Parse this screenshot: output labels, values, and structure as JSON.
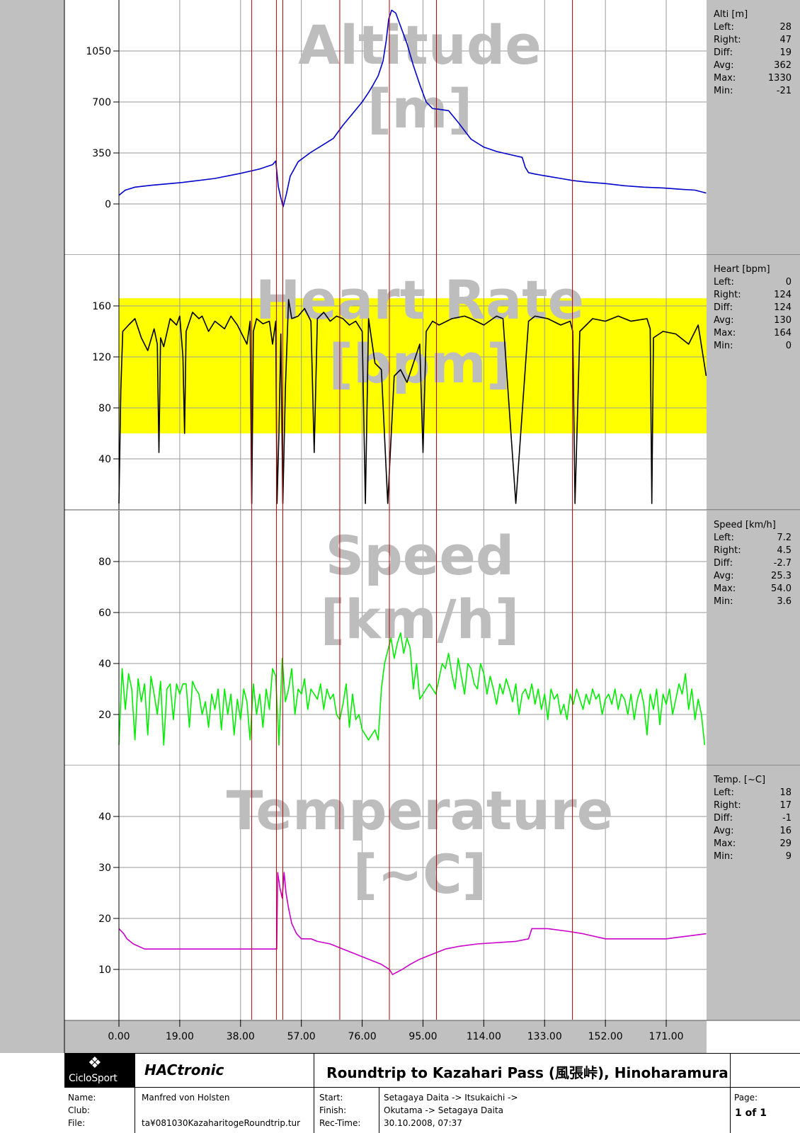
{
  "x_axis": {
    "ticks": [
      "0.00",
      "19.00",
      "38.00",
      "57.00",
      "76.00",
      "95.00",
      "114.00",
      "133.00",
      "152.00",
      "171.00"
    ]
  },
  "markers_x": [
    41.5,
    49.2,
    51.2,
    69.0,
    84.5,
    99.2,
    141.7
  ],
  "panels": [
    {
      "watermark": [
        "Altitude",
        "[m]"
      ],
      "stats_title": "Alti [m]",
      "stats": [
        {
          "label": "Left:",
          "value": "28"
        },
        {
          "label": "Right:",
          "value": "47"
        },
        {
          "label": "Diff:",
          "value": "19"
        },
        {
          "label": "Avg:",
          "value": "362"
        },
        {
          "label": "Max:",
          "value": "1330"
        },
        {
          "label": "Min:",
          "value": "-21"
        }
      ],
      "y_ticks": [
        "0",
        "350",
        "700",
        "1050"
      ]
    },
    {
      "watermark": [
        "Heart Rate",
        "[bpm]"
      ],
      "stats_title": "Heart [bpm]",
      "stats": [
        {
          "label": "Left:",
          "value": "0"
        },
        {
          "label": "Right:",
          "value": "124"
        },
        {
          "label": "Diff:",
          "value": "124"
        },
        {
          "label": "Avg:",
          "value": "130"
        },
        {
          "label": "Max:",
          "value": "164"
        },
        {
          "label": "Min:",
          "value": "0"
        }
      ],
      "y_ticks": [
        "40",
        "80",
        "120",
        "160"
      ]
    },
    {
      "watermark": [
        "Speed",
        "[km/h]"
      ],
      "stats_title": "Speed [km/h]",
      "stats": [
        {
          "label": "Left:",
          "value": "7.2"
        },
        {
          "label": "Right:",
          "value": "4.5"
        },
        {
          "label": "Diff:",
          "value": "-2.7"
        },
        {
          "label": "Avg:",
          "value": "25.3"
        },
        {
          "label": "Max:",
          "value": "54.0"
        },
        {
          "label": "Min:",
          "value": "3.6"
        }
      ],
      "y_ticks": [
        "20",
        "40",
        "60",
        "80"
      ]
    },
    {
      "watermark": [
        "Temperature",
        "[~C]"
      ],
      "stats_title": "Temp. [~C]",
      "stats": [
        {
          "label": "Left:",
          "value": "18"
        },
        {
          "label": "Right:",
          "value": "17"
        },
        {
          "label": "Diff:",
          "value": "-1"
        },
        {
          "label": "Avg:",
          "value": "16"
        },
        {
          "label": "Max:",
          "value": "29"
        },
        {
          "label": "Min:",
          "value": "9"
        }
      ],
      "y_ticks": [
        "10",
        "20",
        "30",
        "40"
      ]
    }
  ],
  "chart_data": [
    {
      "type": "line",
      "ylabel": "Alti [m]",
      "xlim": [
        0,
        183.6
      ],
      "ylim": [
        -350,
        1400
      ],
      "color": "#0000cc",
      "series": [
        {
          "x": [
            0,
            2,
            5,
            10,
            20,
            30,
            38,
            44,
            46,
            48,
            49,
            49.8,
            50.5,
            51.3,
            52.3,
            53.5,
            56,
            60,
            63,
            67,
            70,
            73,
            76,
            78,
            79.5,
            81,
            82.5,
            83.5,
            84.3,
            85.2,
            86.5,
            88,
            90,
            92,
            94,
            96,
            98,
            100,
            103,
            106,
            110,
            114,
            118,
            122,
            126,
            127,
            128,
            130,
            134,
            138,
            142,
            146,
            152,
            158,
            164,
            170,
            176,
            180,
            183.5
          ],
          "y": [
            60,
            95,
            115,
            128,
            148,
            175,
            210,
            240,
            255,
            270,
            295,
            120,
            50,
            -20,
            65,
            190,
            290,
            355,
            395,
            450,
            540,
            620,
            700,
            765,
            820,
            880,
            980,
            1120,
            1270,
            1330,
            1310,
            1220,
            1100,
            950,
            820,
            700,
            655,
            650,
            640,
            560,
            445,
            390,
            360,
            340,
            320,
            250,
            215,
            205,
            190,
            175,
            160,
            150,
            140,
            125,
            115,
            110,
            100,
            95,
            75
          ]
        }
      ]
    },
    {
      "type": "line",
      "ylabel": "Heart [bpm]",
      "xlim": [
        0,
        183.6
      ],
      "ylim": [
        0,
        200
      ],
      "color": "#000000",
      "zone": [
        60,
        166
      ],
      "series": [
        {
          "x": [
            0,
            0.6,
            1.2,
            3,
            5,
            7,
            9,
            11,
            12,
            12.5,
            13,
            14,
            16,
            18,
            19,
            20,
            20.5,
            21,
            23,
            25,
            26,
            28,
            30,
            33,
            35,
            37,
            40,
            41,
            41.5,
            42,
            43,
            45,
            47,
            48,
            49,
            49.4,
            50,
            50.6,
            51.2,
            52,
            53,
            54,
            56,
            58,
            60,
            61,
            62,
            64,
            66,
            68,
            70,
            72,
            74,
            76,
            77,
            78,
            80,
            82,
            84,
            86,
            88,
            90,
            92,
            94,
            95,
            96,
            98,
            100,
            104,
            108,
            110,
            114,
            118,
            120,
            124,
            128,
            130,
            134,
            138,
            141,
            141.8,
            142.5,
            144,
            148,
            152,
            156,
            160,
            165,
            166,
            166.5,
            167,
            170,
            174,
            178,
            181,
            183.5
          ],
          "y": [
            5,
            95,
            140,
            145,
            150,
            135,
            125,
            142,
            130,
            45,
            135,
            128,
            150,
            145,
            152,
            120,
            60,
            140,
            155,
            150,
            152,
            140,
            148,
            142,
            152,
            145,
            130,
            148,
            5,
            140,
            150,
            146,
            148,
            130,
            148,
            5,
            60,
            138,
            5,
            95,
            165,
            150,
            152,
            158,
            148,
            45,
            150,
            155,
            148,
            152,
            150,
            145,
            148,
            140,
            5,
            150,
            115,
            110,
            5,
            105,
            110,
            100,
            115,
            130,
            45,
            140,
            148,
            145,
            150,
            152,
            150,
            145,
            152,
            150,
            5,
            148,
            152,
            150,
            145,
            148,
            140,
            5,
            140,
            150,
            148,
            152,
            148,
            150,
            142,
            5,
            135,
            140,
            138,
            130,
            145,
            105
          ]
        }
      ]
    },
    {
      "type": "line",
      "ylabel": "Speed [km/h]",
      "xlim": [
        0,
        183.6
      ],
      "ylim": [
        0,
        100
      ],
      "color": "#00ee00",
      "series": [
        {
          "x": [
            0,
            1,
            2,
            3,
            4,
            5,
            6,
            7,
            8,
            9,
            10,
            11,
            12,
            13,
            14,
            15,
            16,
            17,
            18,
            19,
            20,
            21,
            22,
            23,
            24,
            25,
            26,
            27,
            28,
            29,
            30,
            31,
            32,
            33,
            34,
            35,
            36,
            37,
            38,
            39,
            40,
            41,
            42,
            43,
            44,
            45,
            46,
            47,
            48,
            49,
            50,
            51,
            52,
            53,
            54,
            55,
            56,
            57,
            58,
            59,
            60,
            61,
            62,
            63,
            64,
            65,
            66,
            67,
            68,
            69,
            70,
            71,
            72,
            73,
            74,
            75,
            76,
            77,
            78,
            79,
            80,
            81,
            82,
            83,
            84,
            85,
            86,
            87,
            88,
            89,
            90,
            91,
            92,
            93,
            94,
            95,
            96,
            97,
            98,
            99,
            100,
            101,
            102,
            103,
            104,
            105,
            106,
            107,
            108,
            109,
            110,
            111,
            112,
            113,
            114,
            115,
            116,
            117,
            118,
            119,
            120,
            121,
            122,
            123,
            124,
            125,
            126,
            127,
            128,
            129,
            130,
            131,
            132,
            133,
            134,
            135,
            136,
            137,
            138,
            139,
            140,
            141,
            142,
            143,
            144,
            145,
            146,
            147,
            148,
            149,
            150,
            151,
            152,
            153,
            154,
            155,
            156,
            157,
            158,
            159,
            160,
            161,
            162,
            163,
            164,
            165,
            166,
            167,
            168,
            169,
            170,
            171,
            172,
            173,
            174,
            175,
            176,
            177,
            178,
            179,
            180,
            181,
            182,
            183
          ],
          "y": [
            8,
            38,
            22,
            36,
            30,
            10,
            34,
            25,
            32,
            12,
            35,
            28,
            20,
            33,
            8,
            30,
            32,
            18,
            32,
            28,
            32,
            32,
            15,
            33,
            30,
            28,
            20,
            25,
            15,
            28,
            22,
            30,
            14,
            30,
            20,
            28,
            12,
            26,
            18,
            30,
            25,
            10,
            32,
            20,
            28,
            15,
            30,
            22,
            38,
            35,
            8,
            42,
            25,
            30,
            38,
            20,
            30,
            28,
            34,
            22,
            30,
            28,
            26,
            32,
            22,
            30,
            26,
            28,
            20,
            18,
            24,
            32,
            15,
            28,
            18,
            20,
            14,
            12,
            10,
            12,
            14,
            10,
            30,
            40,
            45,
            50,
            42,
            48,
            52,
            44,
            50,
            46,
            30,
            40,
            26,
            28,
            30,
            32,
            30,
            28,
            34,
            40,
            38,
            44,
            36,
            30,
            42,
            35,
            28,
            40,
            38,
            32,
            30,
            40,
            36,
            28,
            35,
            30,
            24,
            32,
            28,
            34,
            30,
            25,
            32,
            20,
            28,
            30,
            26,
            32,
            24,
            30,
            22,
            28,
            18,
            30,
            26,
            28,
            20,
            24,
            18,
            28,
            24,
            30,
            26,
            22,
            28,
            24,
            30,
            26,
            28,
            20,
            26,
            28,
            24,
            30,
            22,
            28,
            26,
            20,
            28,
            18,
            26,
            30,
            24,
            12,
            28,
            22,
            30,
            16,
            28,
            24,
            30,
            20,
            26,
            32,
            28,
            36,
            22,
            30,
            18,
            26,
            20,
            8
          ]
        }
      ]
    },
    {
      "type": "line",
      "ylabel": "Temp. [~C]",
      "xlim": [
        0,
        183.6
      ],
      "ylim": [
        0,
        50
      ],
      "color": "#cc00cc",
      "series": [
        {
          "x": [
            0,
            1.5,
            2.5,
            4.5,
            8,
            49.3,
            49.6,
            50.3,
            51.0,
            51.6,
            52.2,
            53.0,
            54.0,
            55.5,
            57.0,
            60.0,
            62.0,
            66.0,
            70.0,
            74.0,
            78.0,
            82.0,
            84.5,
            85.5,
            88.5,
            91.0,
            94.0,
            98.0,
            102.0,
            106.0,
            112.0,
            124.0,
            128.0,
            129.0,
            134.0,
            140.0,
            145.0,
            152.0,
            160.0,
            171.0,
            183.5
          ],
          "y": [
            18,
            17,
            16,
            15,
            14,
            14,
            29,
            26,
            24,
            29,
            25,
            22,
            19,
            17,
            16,
            16,
            15.5,
            15,
            14,
            13,
            12,
            11,
            10,
            9,
            10,
            11,
            12,
            13,
            14,
            14.5,
            15,
            15.5,
            16,
            18,
            18,
            17.5,
            17,
            16,
            16,
            16,
            17
          ]
        }
      ]
    }
  ],
  "footer": {
    "logo_text": "CicloSport",
    "product": "HACtronic",
    "title": "Roundtrip to Kazahari Pass (風張峠), Hinoharamura",
    "left_labels": [
      "Name:",
      "Club:",
      "File:"
    ],
    "name": "Manfred von Holsten",
    "club": "",
    "file": "ta¥081030KazaharitogeRoundtrip.tur",
    "mid_labels": [
      "Start:",
      "Finish:",
      "Rec-Time:"
    ],
    "start": "Setagaya Daita -> Itsukaichi ->",
    "finish": "Okutama -> Setagaya Daita",
    "rectime": "30.10.2008, 07:37",
    "page_label": "Page:",
    "page_value": "1 of 1"
  }
}
